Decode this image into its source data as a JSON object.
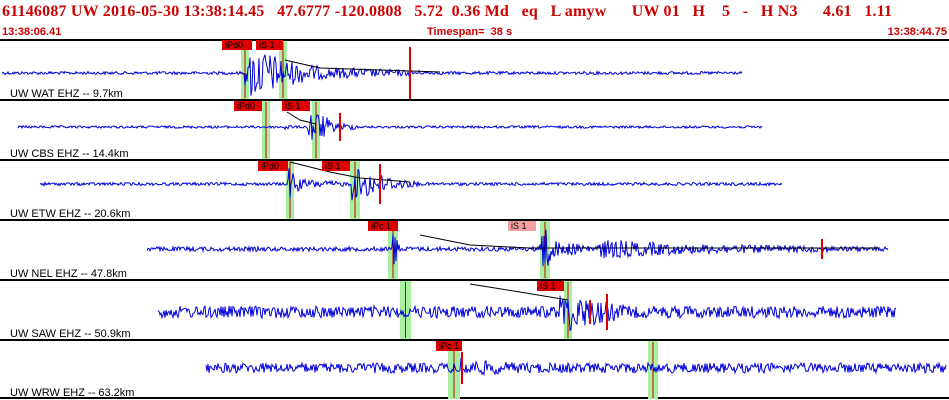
{
  "header": {
    "title": "61146087 UW 2016-05-30 13:38:14.45   47.6777 -120.0808   5.72  0.36 Md   eq   L amyw      UW 01   H    5   -   H N3      4.61   1.11",
    "start_time": "13:38:06.41",
    "timespan": "Timespan=  38 s",
    "end_time": "13:38:44.75"
  },
  "colors": {
    "trace": "#0000dd",
    "pick_box": "#dd0000",
    "pick_box_unused": "#f4a0a0",
    "pick_window": "#a8f0a0",
    "header_text": "#cc0000"
  },
  "channels": [
    {
      "label": "UW WAT EHZ -- 9.7km",
      "picks": [
        {
          "text": "iPd0",
          "kind": "P"
        },
        {
          "text": "iS 1",
          "kind": "S"
        }
      ]
    },
    {
      "label": "UW CBS EHZ -- 14.4km",
      "picks": [
        {
          "text": "iPd0",
          "kind": "P"
        },
        {
          "text": "iS 1",
          "kind": "S"
        }
      ]
    },
    {
      "label": "UW ETW EHZ -- 20.6km",
      "picks": [
        {
          "text": "iPd0",
          "kind": "P"
        },
        {
          "text": "iS 1",
          "kind": "S"
        }
      ]
    },
    {
      "label": "UW NEL EHZ -- 47.8km",
      "picks": [
        {
          "text": "iPc 1",
          "kind": "P"
        },
        {
          "text": "iS 1",
          "kind": "S-unused"
        }
      ]
    },
    {
      "label": "UW SAW EHZ -- 50.9km",
      "picks": [
        {
          "text": "iS 1",
          "kind": "S"
        }
      ]
    },
    {
      "label": "UW WRW EHZ -- 63.2km",
      "picks": [
        {
          "text": "iPc 1",
          "kind": "P"
        }
      ]
    }
  ]
}
